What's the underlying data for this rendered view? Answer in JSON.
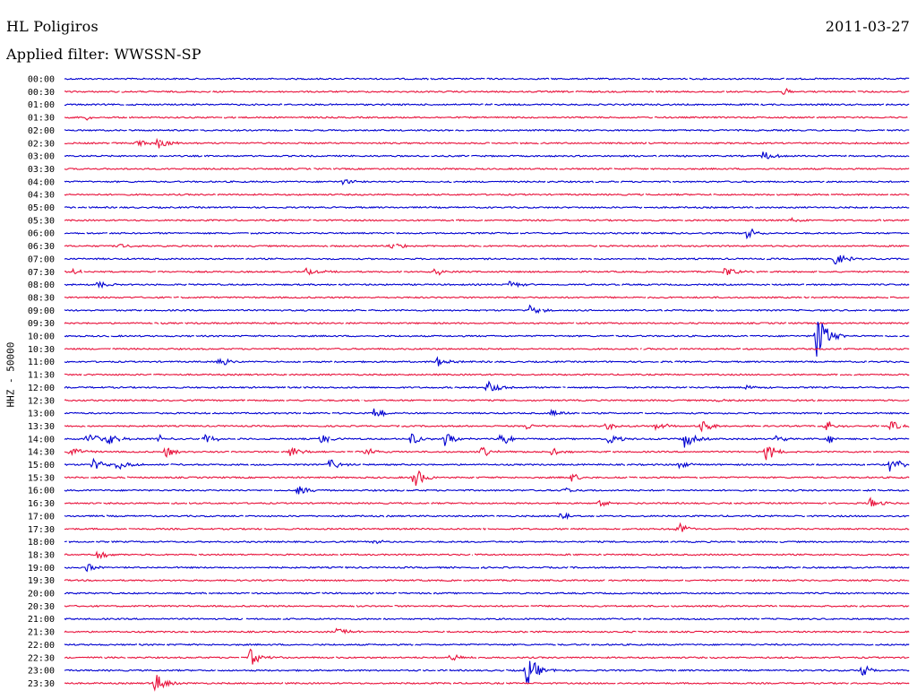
{
  "header": {
    "station": "HL Poligiros",
    "date": "2011-03-27",
    "filter": "Applied filter: WWSSN-SP"
  },
  "colors": {
    "even_row": "#0000d0",
    "odd_row": "#e8103a",
    "background": "#ffffff"
  },
  "chart_data": {
    "type": "line",
    "title": "HL Poligiros",
    "subtitle": "Applied filter: WWSSN-SP",
    "ylabel": "HHZ - 50000",
    "y_tick_labels": [
      "00:00",
      "00:30",
      "01:00",
      "01:30",
      "02:00",
      "02:30",
      "03:00",
      "03:30",
      "04:00",
      "04:30",
      "05:00",
      "05:30",
      "06:00",
      "06:30",
      "07:00",
      "07:30",
      "08:00",
      "08:30",
      "09:00",
      "09:30",
      "10:00",
      "10:30",
      "11:00",
      "11:30",
      "12:00",
      "12:30",
      "13:00",
      "13:30",
      "14:00",
      "14:30",
      "15:00",
      "15:30",
      "16:00",
      "16:30",
      "17:00",
      "17:30",
      "18:00",
      "18:30",
      "19:00",
      "19:30",
      "20:00",
      "20:30",
      "21:00",
      "21:30",
      "22:00",
      "22:30",
      "23:00",
      "23:30"
    ],
    "x_range_minutes": [
      0,
      30
    ],
    "rows": [
      {
        "time": "00:00",
        "events": []
      },
      {
        "time": "00:30",
        "events": [
          {
            "minute": 25.5,
            "amp": 4
          }
        ]
      },
      {
        "time": "01:00",
        "events": []
      },
      {
        "time": "01:30",
        "events": [
          {
            "minute": 0.8,
            "amp": 3
          }
        ]
      },
      {
        "time": "02:00",
        "events": []
      },
      {
        "time": "02:30",
        "events": [
          {
            "minute": 2.6,
            "amp": 5
          },
          {
            "minute": 3.3,
            "amp": 7
          }
        ]
      },
      {
        "time": "03:00",
        "events": [
          {
            "minute": 24.8,
            "amp": 6
          }
        ]
      },
      {
        "time": "03:30",
        "events": []
      },
      {
        "time": "04:00",
        "events": [
          {
            "minute": 9.9,
            "amp": 4
          }
        ]
      },
      {
        "time": "04:30",
        "events": []
      },
      {
        "time": "05:00",
        "events": []
      },
      {
        "time": "05:30",
        "events": [
          {
            "minute": 25.8,
            "amp": 3
          }
        ]
      },
      {
        "time": "06:00",
        "events": [
          {
            "minute": 24.2,
            "amp": 8
          }
        ]
      },
      {
        "time": "06:30",
        "events": [
          {
            "minute": 2.0,
            "amp": 3
          },
          {
            "minute": 11.6,
            "amp": 5
          }
        ]
      },
      {
        "time": "07:00",
        "events": [
          {
            "minute": 27.3,
            "amp": 9
          }
        ]
      },
      {
        "time": "07:30",
        "events": [
          {
            "minute": 0.3,
            "amp": 3
          },
          {
            "minute": 8.6,
            "amp": 5
          },
          {
            "minute": 13.1,
            "amp": 6
          },
          {
            "minute": 23.4,
            "amp": 7
          }
        ]
      },
      {
        "time": "08:00",
        "events": [
          {
            "minute": 1.2,
            "amp": 4
          },
          {
            "minute": 15.8,
            "amp": 4
          }
        ]
      },
      {
        "time": "08:30",
        "events": []
      },
      {
        "time": "09:00",
        "events": [
          {
            "minute": 16.5,
            "amp": 6
          }
        ]
      },
      {
        "time": "09:30",
        "events": []
      },
      {
        "time": "10:00",
        "events": [
          {
            "minute": 26.7,
            "amp": 30
          }
        ]
      },
      {
        "time": "10:30",
        "events": []
      },
      {
        "time": "11:00",
        "events": [
          {
            "minute": 5.5,
            "amp": 6
          },
          {
            "minute": 13.2,
            "amp": 6
          }
        ]
      },
      {
        "time": "11:30",
        "events": []
      },
      {
        "time": "12:00",
        "events": [
          {
            "minute": 15.0,
            "amp": 11
          },
          {
            "minute": 24.2,
            "amp": 3
          }
        ]
      },
      {
        "time": "12:30",
        "events": [
          {
            "minute": 23.2,
            "amp": 3
          }
        ]
      },
      {
        "time": "13:00",
        "events": [
          {
            "minute": 11.0,
            "amp": 8
          },
          {
            "minute": 17.3,
            "amp": 5
          }
        ]
      },
      {
        "time": "13:30",
        "events": [
          {
            "minute": 16.4,
            "amp": 4
          },
          {
            "minute": 19.2,
            "amp": 5
          },
          {
            "minute": 21.0,
            "amp": 5
          },
          {
            "minute": 22.6,
            "amp": 8
          },
          {
            "minute": 27.0,
            "amp": 7
          },
          {
            "minute": 29.3,
            "amp": 6
          }
        ]
      },
      {
        "time": "14:00",
        "events": [
          {
            "minute": 0.8,
            "amp": 8
          },
          {
            "minute": 1.5,
            "amp": 8
          },
          {
            "minute": 3.3,
            "amp": 6
          },
          {
            "minute": 5.0,
            "amp": 6
          },
          {
            "minute": 9.1,
            "amp": 6
          },
          {
            "minute": 12.3,
            "amp": 8
          },
          {
            "minute": 13.5,
            "amp": 9
          },
          {
            "minute": 15.5,
            "amp": 9
          },
          {
            "minute": 19.3,
            "amp": 7
          },
          {
            "minute": 22.0,
            "amp": 10
          },
          {
            "minute": 25.2,
            "amp": 6
          },
          {
            "minute": 27.1,
            "amp": 6
          }
        ]
      },
      {
        "time": "14:30",
        "events": [
          {
            "minute": 0.2,
            "amp": 7
          },
          {
            "minute": 3.6,
            "amp": 7
          },
          {
            "minute": 8.0,
            "amp": 8
          },
          {
            "minute": 10.7,
            "amp": 6
          },
          {
            "minute": 14.8,
            "amp": 6
          },
          {
            "minute": 17.3,
            "amp": 5
          },
          {
            "minute": 24.9,
            "amp": 10
          }
        ]
      },
      {
        "time": "15:00",
        "events": [
          {
            "minute": 1.0,
            "amp": 8
          },
          {
            "minute": 1.9,
            "amp": 8
          },
          {
            "minute": 9.4,
            "amp": 7
          },
          {
            "minute": 21.8,
            "amp": 5
          },
          {
            "minute": 29.3,
            "amp": 9
          }
        ]
      },
      {
        "time": "15:30",
        "events": [
          {
            "minute": 12.4,
            "amp": 13
          },
          {
            "minute": 18.0,
            "amp": 5
          }
        ]
      },
      {
        "time": "16:00",
        "events": [
          {
            "minute": 8.3,
            "amp": 7
          },
          {
            "minute": 17.7,
            "amp": 4
          }
        ]
      },
      {
        "time": "16:30",
        "events": [
          {
            "minute": 19.0,
            "amp": 5
          },
          {
            "minute": 28.6,
            "amp": 6
          }
        ]
      },
      {
        "time": "17:00",
        "events": [
          {
            "minute": 17.6,
            "amp": 7
          }
        ]
      },
      {
        "time": "17:30",
        "events": [
          {
            "minute": 21.7,
            "amp": 9
          }
        ]
      },
      {
        "time": "18:00",
        "events": [
          {
            "minute": 11.0,
            "amp": 3
          }
        ]
      },
      {
        "time": "18:30",
        "events": [
          {
            "minute": 1.2,
            "amp": 6
          }
        ]
      },
      {
        "time": "19:00",
        "events": [
          {
            "minute": 0.8,
            "amp": 5
          }
        ]
      },
      {
        "time": "19:30",
        "events": []
      },
      {
        "time": "20:00",
        "events": []
      },
      {
        "time": "20:30",
        "events": []
      },
      {
        "time": "21:00",
        "events": []
      },
      {
        "time": "21:30",
        "events": [
          {
            "minute": 9.7,
            "amp": 6
          }
        ]
      },
      {
        "time": "22:00",
        "events": []
      },
      {
        "time": "22:30",
        "events": [
          {
            "minute": 6.6,
            "amp": 10
          },
          {
            "minute": 13.7,
            "amp": 5
          }
        ]
      },
      {
        "time": "23:00",
        "events": [
          {
            "minute": 16.4,
            "amp": 20
          },
          {
            "minute": 28.3,
            "amp": 8
          }
        ]
      },
      {
        "time": "23:30",
        "events": [
          {
            "minute": 3.2,
            "amp": 12
          }
        ]
      }
    ]
  }
}
